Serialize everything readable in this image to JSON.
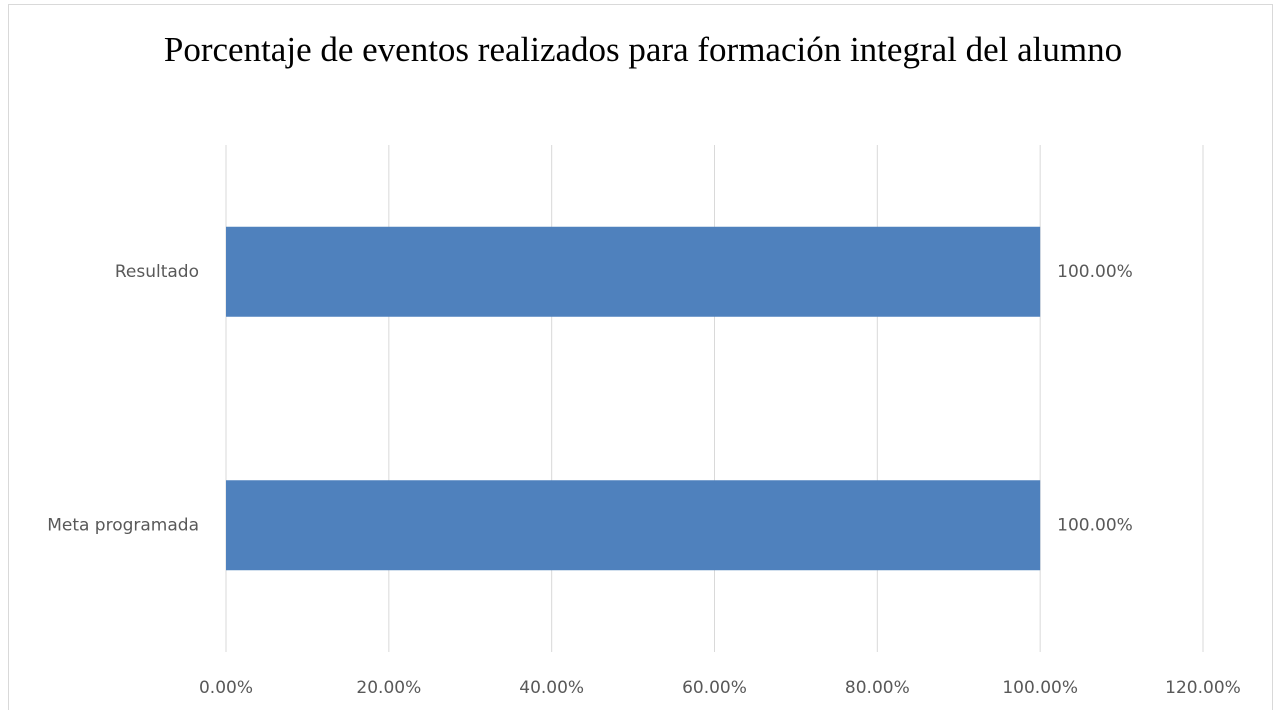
{
  "chart_data": {
    "type": "bar",
    "orientation": "horizontal",
    "title": "Porcentaje de eventos realizados para formación integral del alumno",
    "categories": [
      "Resultado",
      "Meta programada"
    ],
    "values": [
      100,
      100
    ],
    "value_labels": [
      "100.00%",
      "100.00%"
    ],
    "color": "#4f81bd",
    "xlim": [
      0,
      120
    ],
    "xticks": [
      {
        "value": 0,
        "label": "0.00%"
      },
      {
        "value": 20,
        "label": "20.00%"
      },
      {
        "value": 40,
        "label": "40.00%"
      },
      {
        "value": 60,
        "label": "60.00%"
      },
      {
        "value": 80,
        "label": "80.00%"
      },
      {
        "value": 100,
        "label": "100.00%"
      },
      {
        "value": 120,
        "label": "120.00%"
      }
    ],
    "grid": true
  }
}
